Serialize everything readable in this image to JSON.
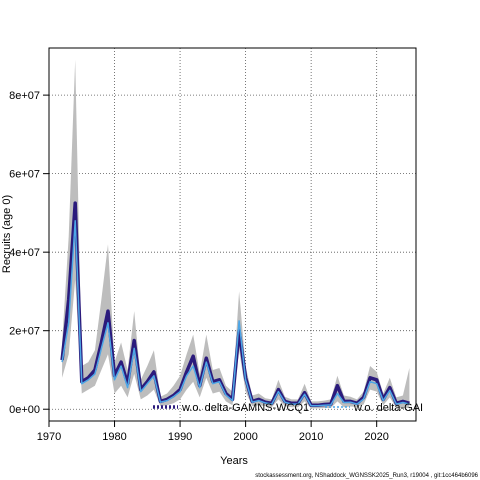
{
  "chart_data": {
    "type": "line",
    "title": "",
    "xlabel": "Years",
    "ylabel": "Recruits (age 0)",
    "xlim": [
      1970,
      2026
    ],
    "ylim": [
      -3000000,
      92000000
    ],
    "xticks": [
      1970,
      1980,
      1990,
      2000,
      2010,
      2020
    ],
    "xtick_labels": [
      "1970",
      "1980",
      "1990",
      "2000",
      "2010",
      "2020"
    ],
    "yticks": [
      0,
      20000000,
      40000000,
      60000000,
      80000000
    ],
    "ytick_labels": [
      "0e+00",
      "2e+07",
      "4e+07",
      "6e+07",
      "8e+07"
    ],
    "grid": true,
    "legend_position": "bottom",
    "x": [
      1972,
      1973,
      1974,
      1975,
      1976,
      1977,
      1978,
      1979,
      1980,
      1981,
      1982,
      1983,
      1984,
      1985,
      1986,
      1987,
      1988,
      1989,
      1990,
      1991,
      1992,
      1993,
      1994,
      1995,
      1996,
      1997,
      1998,
      1999,
      2000,
      2001,
      2002,
      2003,
      2004,
      2005,
      2006,
      2007,
      2008,
      2009,
      2010,
      2011,
      2012,
      2013,
      2014,
      2015,
      2016,
      2017,
      2018,
      2019,
      2020,
      2021,
      2022,
      2023,
      2024,
      2025
    ],
    "ci_lower": [
      8000000,
      14000000,
      33000000,
      4000000,
      5000000,
      6000000,
      10000000,
      14000000,
      4000000,
      6000000,
      3000000,
      9000000,
      2500000,
      3500000,
      5000000,
      800000,
      1000000,
      1500000,
      2500000,
      5000000,
      7000000,
      3000000,
      8000000,
      4000000,
      4500000,
      2000000,
      1000000,
      15000000,
      4500000,
      800000,
      1000000,
      800000,
      500000,
      2500000,
      800000,
      500000,
      500000,
      2000000,
      200000,
      200000,
      300000,
      300000,
      2000000,
      500000,
      700000,
      600000,
      1200000,
      5000000,
      4500000,
      1000000,
      3000000,
      300000,
      300000,
      300000
    ],
    "ci_upper": [
      17000000,
      44000000,
      89000000,
      11000000,
      12000000,
      15000000,
      28000000,
      42000000,
      12000000,
      17000000,
      10000000,
      25000000,
      7500000,
      11000000,
      15000000,
      3200000,
      4000000,
      6000000,
      8500000,
      14000000,
      19000000,
      9000000,
      19000000,
      10000000,
      10500000,
      6000000,
      4500000,
      30000000,
      11000000,
      3500000,
      4000000,
      2800000,
      2500000,
      7500000,
      3200000,
      2500000,
      2500000,
      6500000,
      2000000,
      2000000,
      2200000,
      2500000,
      8500000,
      3500000,
      3200000,
      2500000,
      4500000,
      11000000,
      9500000,
      4000000,
      8000000,
      3000000,
      3500000,
      10500000
    ],
    "series": [
      {
        "name": "w.o. delta-GAMNS-WCQ1",
        "color": "#2b1b7c",
        "values": [
          12500000,
          28000000,
          52500000,
          7000000,
          8000000,
          10000000,
          17000000,
          25000000,
          8500000,
          12000000,
          6500000,
          17500000,
          5000000,
          7000000,
          9500000,
          2000000,
          2500000,
          3500000,
          5000000,
          9500000,
          13500000,
          6000000,
          13000000,
          7000000,
          7500000,
          4000000,
          2500000,
          20000000,
          8000000,
          2000000,
          2500000,
          1800000,
          1500000,
          5000000,
          2000000,
          1500000,
          1500000,
          4200000,
          1000000,
          1000000,
          1200000,
          1300000,
          6000000,
          2000000,
          2000000,
          1500000,
          3000000,
          8000000,
          7500000,
          2500000,
          5500000,
          1500000,
          2000000,
          1500000
        ]
      },
      {
        "name": "w.o. delta-GAI",
        "color": "#4da6e6",
        "values": [
          12000000,
          22000000,
          48000000,
          6500000,
          7500000,
          9000000,
          15500000,
          22000000,
          7500000,
          11000000,
          5500000,
          15500000,
          4500000,
          6500000,
          8500000,
          1800000,
          2200000,
          3200000,
          4500000,
          8500000,
          11000000,
          5500000,
          12000000,
          6500000,
          7000000,
          3600000,
          2200000,
          22500000,
          7500000,
          1800000,
          2200000,
          1600000,
          1300000,
          4500000,
          1800000,
          1300000,
          1300000,
          3800000,
          900000,
          900000,
          1000000,
          1100000,
          4000000,
          1700000,
          1800000,
          1300000,
          2600000,
          7000000,
          6500000,
          2200000,
          4800000,
          1300000,
          1700000,
          1300000
        ]
      }
    ]
  },
  "footer_text": "stockassessment.org, NShaddock_WGNSSK2025_Run3, r19004 , git:1cc464b6096"
}
